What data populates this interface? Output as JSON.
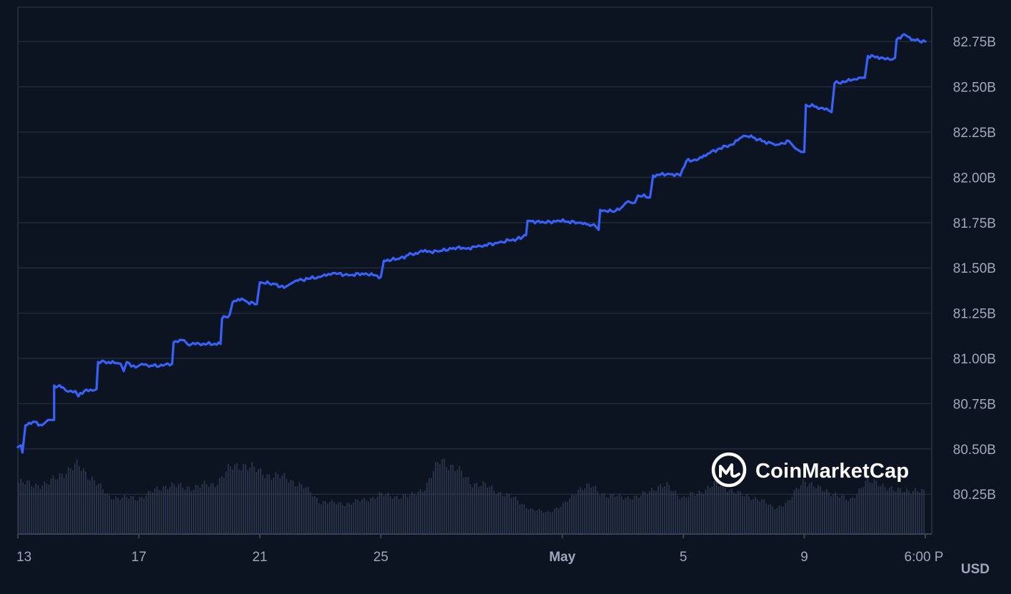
{
  "chart_data": {
    "type": "line",
    "currency": "USD",
    "ylim": [
      80.03,
      82.94
    ],
    "y_ticks": [
      "82.75B",
      "82.50B",
      "82.25B",
      "82.00B",
      "81.75B",
      "81.50B",
      "81.25B",
      "81.00B",
      "80.75B",
      "80.50B",
      "80.25B"
    ],
    "y_tick_values": [
      82.75,
      82.5,
      82.25,
      82.0,
      81.75,
      81.5,
      81.25,
      81.0,
      80.75,
      80.5,
      80.25
    ],
    "x_ticks": [
      {
        "label": "13",
        "x": 0.0,
        "bold": false
      },
      {
        "label": "17",
        "x": 4.0,
        "bold": false
      },
      {
        "label": "21",
        "x": 8.0,
        "bold": false
      },
      {
        "label": "25",
        "x": 12.0,
        "bold": false
      },
      {
        "label": "May",
        "x": 18.0,
        "bold": true
      },
      {
        "label": "5",
        "x": 22.0,
        "bold": false
      },
      {
        "label": "9",
        "x": 26.0,
        "bold": false
      },
      {
        "label": "6:00 P",
        "x": 30.0,
        "bold": false
      }
    ],
    "xlim": [
      0,
      30.0
    ],
    "series": [
      {
        "color": "#3861fb",
        "points": [
          [
            0.0,
            80.51
          ],
          [
            0.1,
            80.52
          ],
          [
            0.15,
            80.48
          ],
          [
            0.25,
            80.63
          ],
          [
            0.5,
            80.65
          ],
          [
            0.8,
            80.63
          ],
          [
            1.0,
            80.66
          ],
          [
            1.2,
            80.66
          ],
          [
            1.2,
            80.85
          ],
          [
            1.5,
            80.84
          ],
          [
            1.6,
            80.82
          ],
          [
            1.9,
            80.82
          ],
          [
            2.0,
            80.79
          ],
          [
            2.2,
            80.82
          ],
          [
            2.6,
            80.83
          ],
          [
            2.65,
            80.98
          ],
          [
            3.0,
            80.98
          ],
          [
            3.4,
            80.97
          ],
          [
            3.5,
            80.93
          ],
          [
            3.6,
            80.98
          ],
          [
            3.9,
            80.95
          ],
          [
            4.1,
            80.97
          ],
          [
            4.4,
            80.96
          ],
          [
            4.8,
            80.96
          ],
          [
            5.1,
            80.97
          ],
          [
            5.15,
            81.09
          ],
          [
            5.5,
            81.1
          ],
          [
            5.6,
            81.08
          ],
          [
            6.0,
            81.08
          ],
          [
            6.7,
            81.08
          ],
          [
            6.75,
            81.22
          ],
          [
            7.0,
            81.24
          ],
          [
            7.1,
            81.31
          ],
          [
            7.4,
            81.33
          ],
          [
            7.6,
            81.31
          ],
          [
            7.9,
            81.3
          ],
          [
            8.0,
            81.42
          ],
          [
            8.5,
            81.41
          ],
          [
            8.8,
            81.39
          ],
          [
            9.0,
            81.41
          ],
          [
            9.2,
            81.43
          ],
          [
            9.6,
            81.44
          ],
          [
            10.0,
            81.45
          ],
          [
            10.4,
            81.47
          ],
          [
            11.0,
            81.46
          ],
          [
            11.5,
            81.47
          ],
          [
            12.0,
            81.45
          ],
          [
            12.1,
            81.54
          ],
          [
            12.6,
            81.55
          ],
          [
            12.9,
            81.57
          ],
          [
            13.4,
            81.59
          ],
          [
            13.9,
            81.59
          ],
          [
            14.4,
            81.61
          ],
          [
            14.9,
            81.61
          ],
          [
            15.3,
            81.62
          ],
          [
            15.9,
            81.64
          ],
          [
            16.5,
            81.66
          ],
          [
            16.8,
            81.68
          ],
          [
            16.85,
            81.76
          ],
          [
            17.4,
            81.75
          ],
          [
            17.9,
            81.76
          ],
          [
            18.5,
            81.75
          ],
          [
            18.8,
            81.74
          ],
          [
            19.1,
            81.73
          ],
          [
            19.2,
            81.71
          ],
          [
            19.25,
            81.82
          ],
          [
            19.7,
            81.81
          ],
          [
            20.0,
            81.84
          ],
          [
            20.1,
            81.86
          ],
          [
            20.4,
            81.86
          ],
          [
            20.5,
            81.9
          ],
          [
            20.9,
            81.89
          ],
          [
            21.0,
            82.01
          ],
          [
            21.5,
            82.02
          ],
          [
            21.9,
            82.01
          ],
          [
            22.1,
            82.09
          ],
          [
            22.5,
            82.1
          ],
          [
            22.8,
            82.13
          ],
          [
            23.2,
            82.16
          ],
          [
            23.6,
            82.18
          ],
          [
            24.0,
            82.23
          ],
          [
            24.3,
            82.22
          ],
          [
            24.6,
            82.2
          ],
          [
            24.9,
            82.19
          ],
          [
            25.1,
            82.18
          ],
          [
            25.5,
            82.2
          ],
          [
            25.7,
            82.16
          ],
          [
            25.9,
            82.14
          ],
          [
            26.0,
            82.14
          ],
          [
            26.05,
            82.4
          ],
          [
            26.4,
            82.39
          ],
          [
            26.8,
            82.37
          ],
          [
            26.9,
            82.36
          ],
          [
            27.0,
            82.52
          ],
          [
            27.4,
            82.53
          ],
          [
            27.8,
            82.55
          ],
          [
            28.0,
            82.55
          ],
          [
            28.1,
            82.67
          ],
          [
            28.6,
            82.66
          ],
          [
            28.9,
            82.65
          ],
          [
            29.0,
            82.66
          ],
          [
            29.05,
            82.76
          ],
          [
            29.3,
            82.79
          ],
          [
            29.6,
            82.76
          ],
          [
            30.0,
            82.75
          ]
        ]
      }
    ],
    "volume_profile": [
      [
        0.0,
        0.3
      ],
      [
        0.5,
        0.29
      ],
      [
        1.0,
        0.29
      ],
      [
        1.5,
        0.36
      ],
      [
        2.0,
        0.4
      ],
      [
        2.5,
        0.32
      ],
      [
        3.0,
        0.22
      ],
      [
        3.5,
        0.21
      ],
      [
        4.0,
        0.21
      ],
      [
        4.5,
        0.25
      ],
      [
        5.0,
        0.29
      ],
      [
        5.5,
        0.27
      ],
      [
        6.0,
        0.28
      ],
      [
        6.5,
        0.29
      ],
      [
        7.0,
        0.38
      ],
      [
        7.5,
        0.41
      ],
      [
        8.0,
        0.36
      ],
      [
        8.5,
        0.34
      ],
      [
        9.0,
        0.32
      ],
      [
        9.5,
        0.27
      ],
      [
        10.0,
        0.19
      ],
      [
        10.5,
        0.18
      ],
      [
        11.0,
        0.18
      ],
      [
        11.5,
        0.2
      ],
      [
        12.0,
        0.23
      ],
      [
        12.5,
        0.22
      ],
      [
        13.0,
        0.22
      ],
      [
        13.5,
        0.28
      ],
      [
        14.0,
        0.44
      ],
      [
        14.5,
        0.38
      ],
      [
        15.0,
        0.3
      ],
      [
        15.5,
        0.28
      ],
      [
        16.0,
        0.24
      ],
      [
        16.5,
        0.2
      ],
      [
        17.0,
        0.14
      ],
      [
        17.5,
        0.13
      ],
      [
        18.0,
        0.16
      ],
      [
        18.5,
        0.26
      ],
      [
        19.0,
        0.28
      ],
      [
        19.5,
        0.22
      ],
      [
        20.0,
        0.22
      ],
      [
        20.5,
        0.21
      ],
      [
        21.0,
        0.27
      ],
      [
        21.5,
        0.28
      ],
      [
        22.0,
        0.21
      ],
      [
        22.5,
        0.24
      ],
      [
        23.0,
        0.29
      ],
      [
        23.5,
        0.27
      ],
      [
        24.0,
        0.22
      ],
      [
        24.5,
        0.21
      ],
      [
        25.0,
        0.15
      ],
      [
        25.5,
        0.19
      ],
      [
        26.0,
        0.32
      ],
      [
        26.5,
        0.26
      ],
      [
        27.0,
        0.24
      ],
      [
        27.5,
        0.19
      ],
      [
        28.0,
        0.3
      ],
      [
        28.5,
        0.3
      ],
      [
        29.0,
        0.25
      ],
      [
        29.5,
        0.26
      ],
      [
        30.0,
        0.24
      ]
    ]
  },
  "watermark": {
    "text": "CoinMarketCap",
    "icon": "coinmarketcap-logo-icon"
  },
  "unit_label": "USD",
  "colors": {
    "background": "#0d1421",
    "line": "#3861fb",
    "grid": "#222a3a",
    "volume": "#3a4560",
    "tick": "#a1a7bb"
  }
}
